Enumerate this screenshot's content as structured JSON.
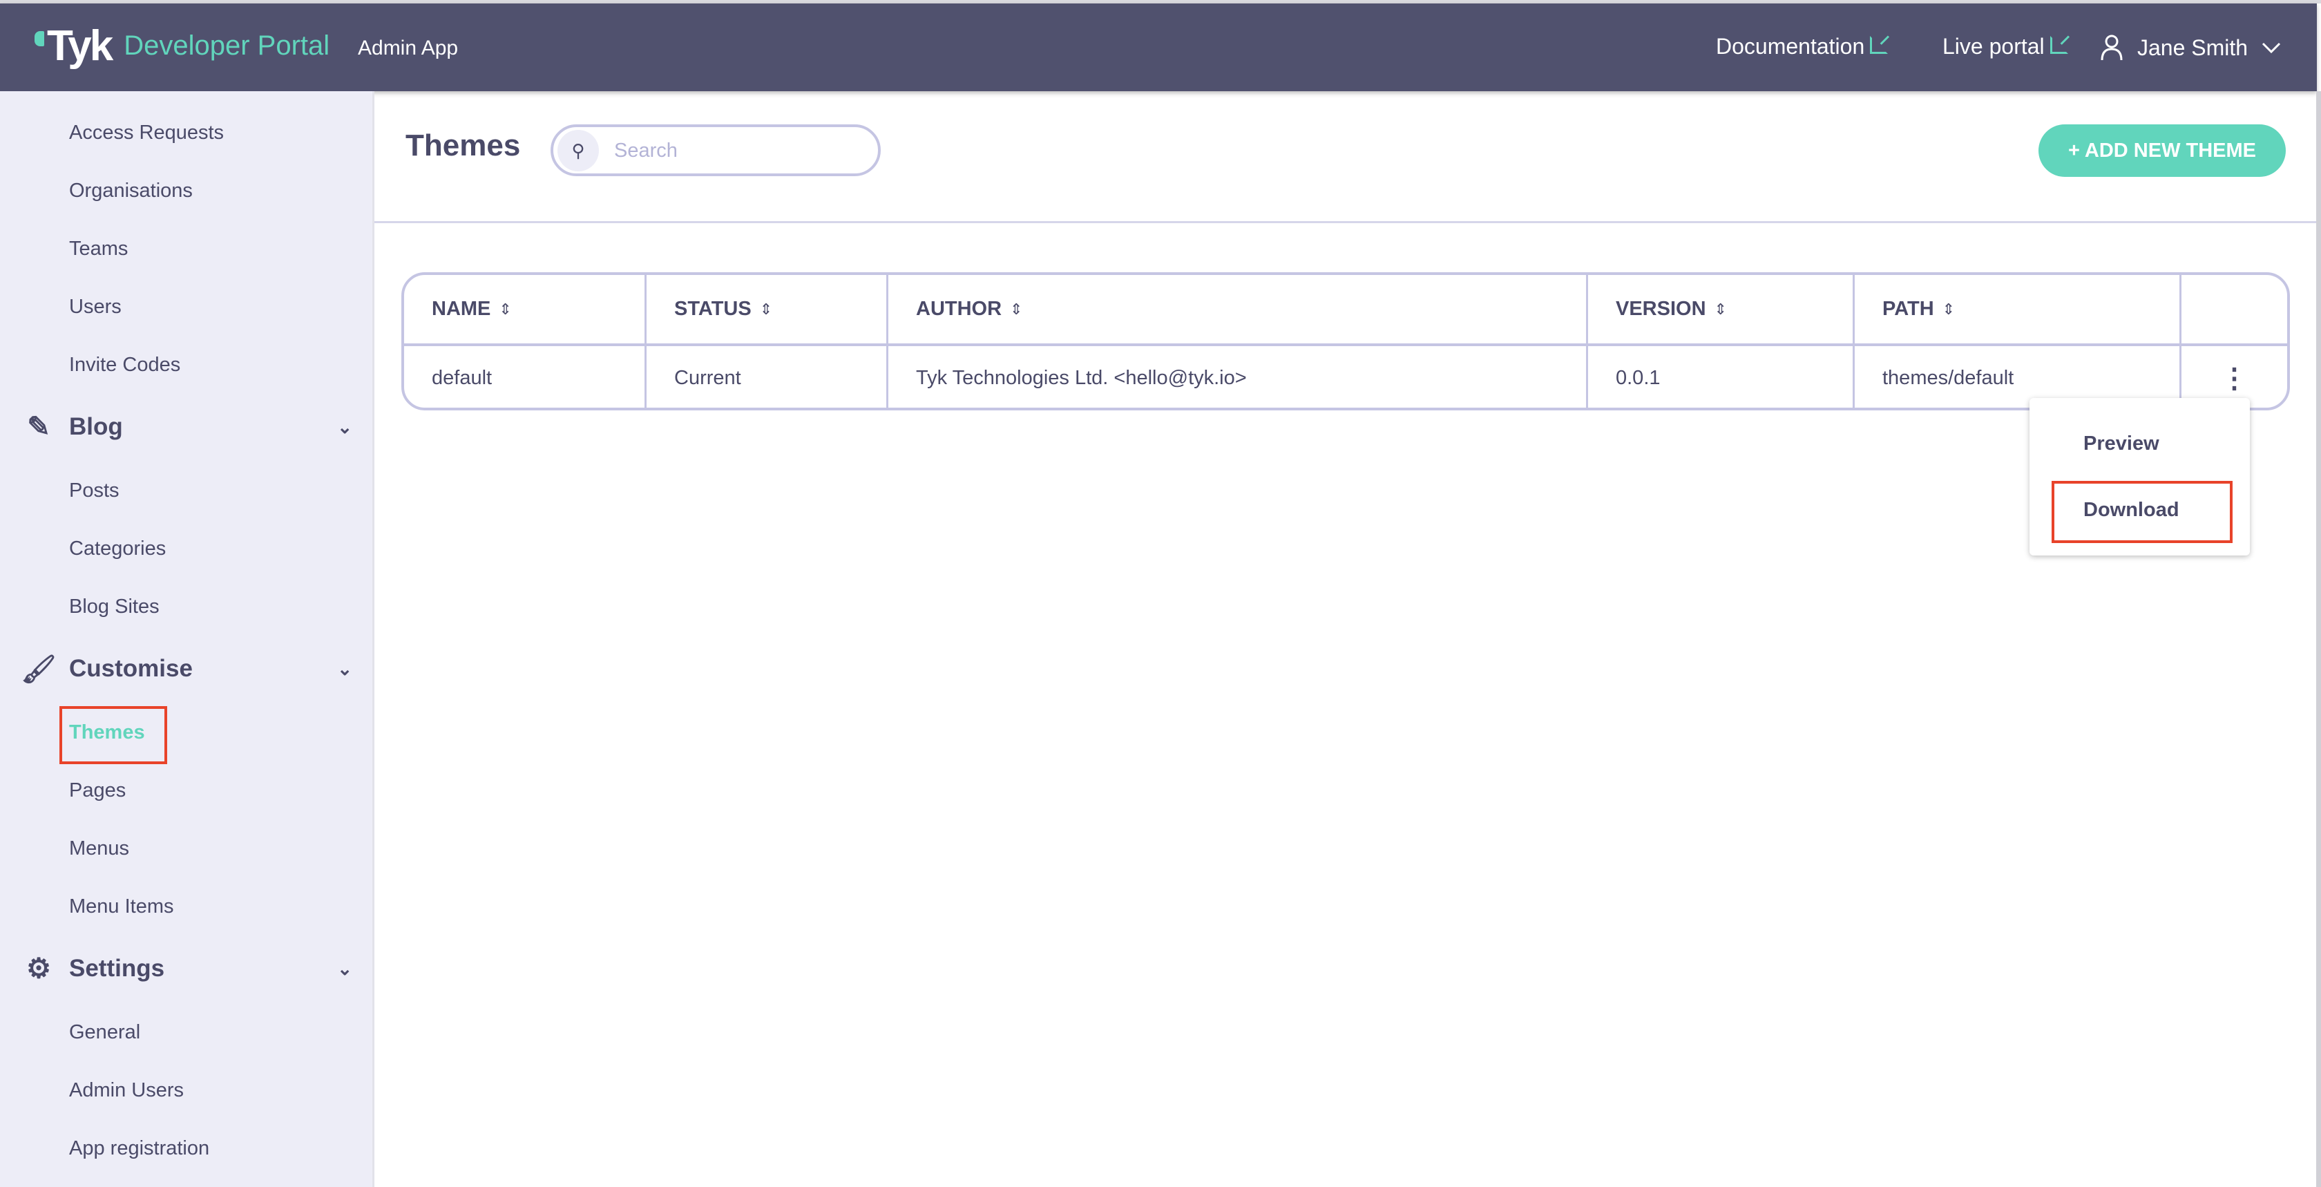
{
  "header": {
    "logo_text": "Tyk",
    "product": "Developer Portal",
    "app": "Admin App",
    "documentation": "Documentation",
    "live_portal": "Live portal",
    "user": "Jane Smith"
  },
  "sidebar": {
    "items_top": [
      "Access Requests",
      "Organisations",
      "Teams",
      "Users",
      "Invite Codes"
    ],
    "sections": [
      {
        "label": "Blog",
        "icon": "blog-icon",
        "items": [
          "Posts",
          "Categories",
          "Blog Sites"
        ]
      },
      {
        "label": "Customise",
        "icon": "brush-icon",
        "items": [
          "Themes",
          "Pages",
          "Menus",
          "Menu Items"
        ]
      },
      {
        "label": "Settings",
        "icon": "gear-icon",
        "items": [
          "General",
          "Admin Users",
          "App registration"
        ]
      }
    ],
    "active": "Themes"
  },
  "page": {
    "title": "Themes",
    "search_placeholder": "Search",
    "add_button": "+ ADD NEW THEME"
  },
  "table": {
    "columns": [
      "NAME",
      "STATUS",
      "AUTHOR",
      "VERSION",
      "PATH"
    ],
    "rows": [
      {
        "name": "default",
        "status": "Current",
        "author": "Tyk Technologies Ltd. <hello@tyk.io>",
        "version": "0.0.1",
        "path": "themes/default"
      }
    ]
  },
  "menu": {
    "items": [
      "Preview",
      "Download"
    ],
    "highlighted": "Download"
  },
  "colors": {
    "header": "#50516e",
    "accent": "#61d5bc",
    "sidebar": "#ededf7",
    "text": "#4a4a68",
    "highlight": "#e8432a"
  }
}
